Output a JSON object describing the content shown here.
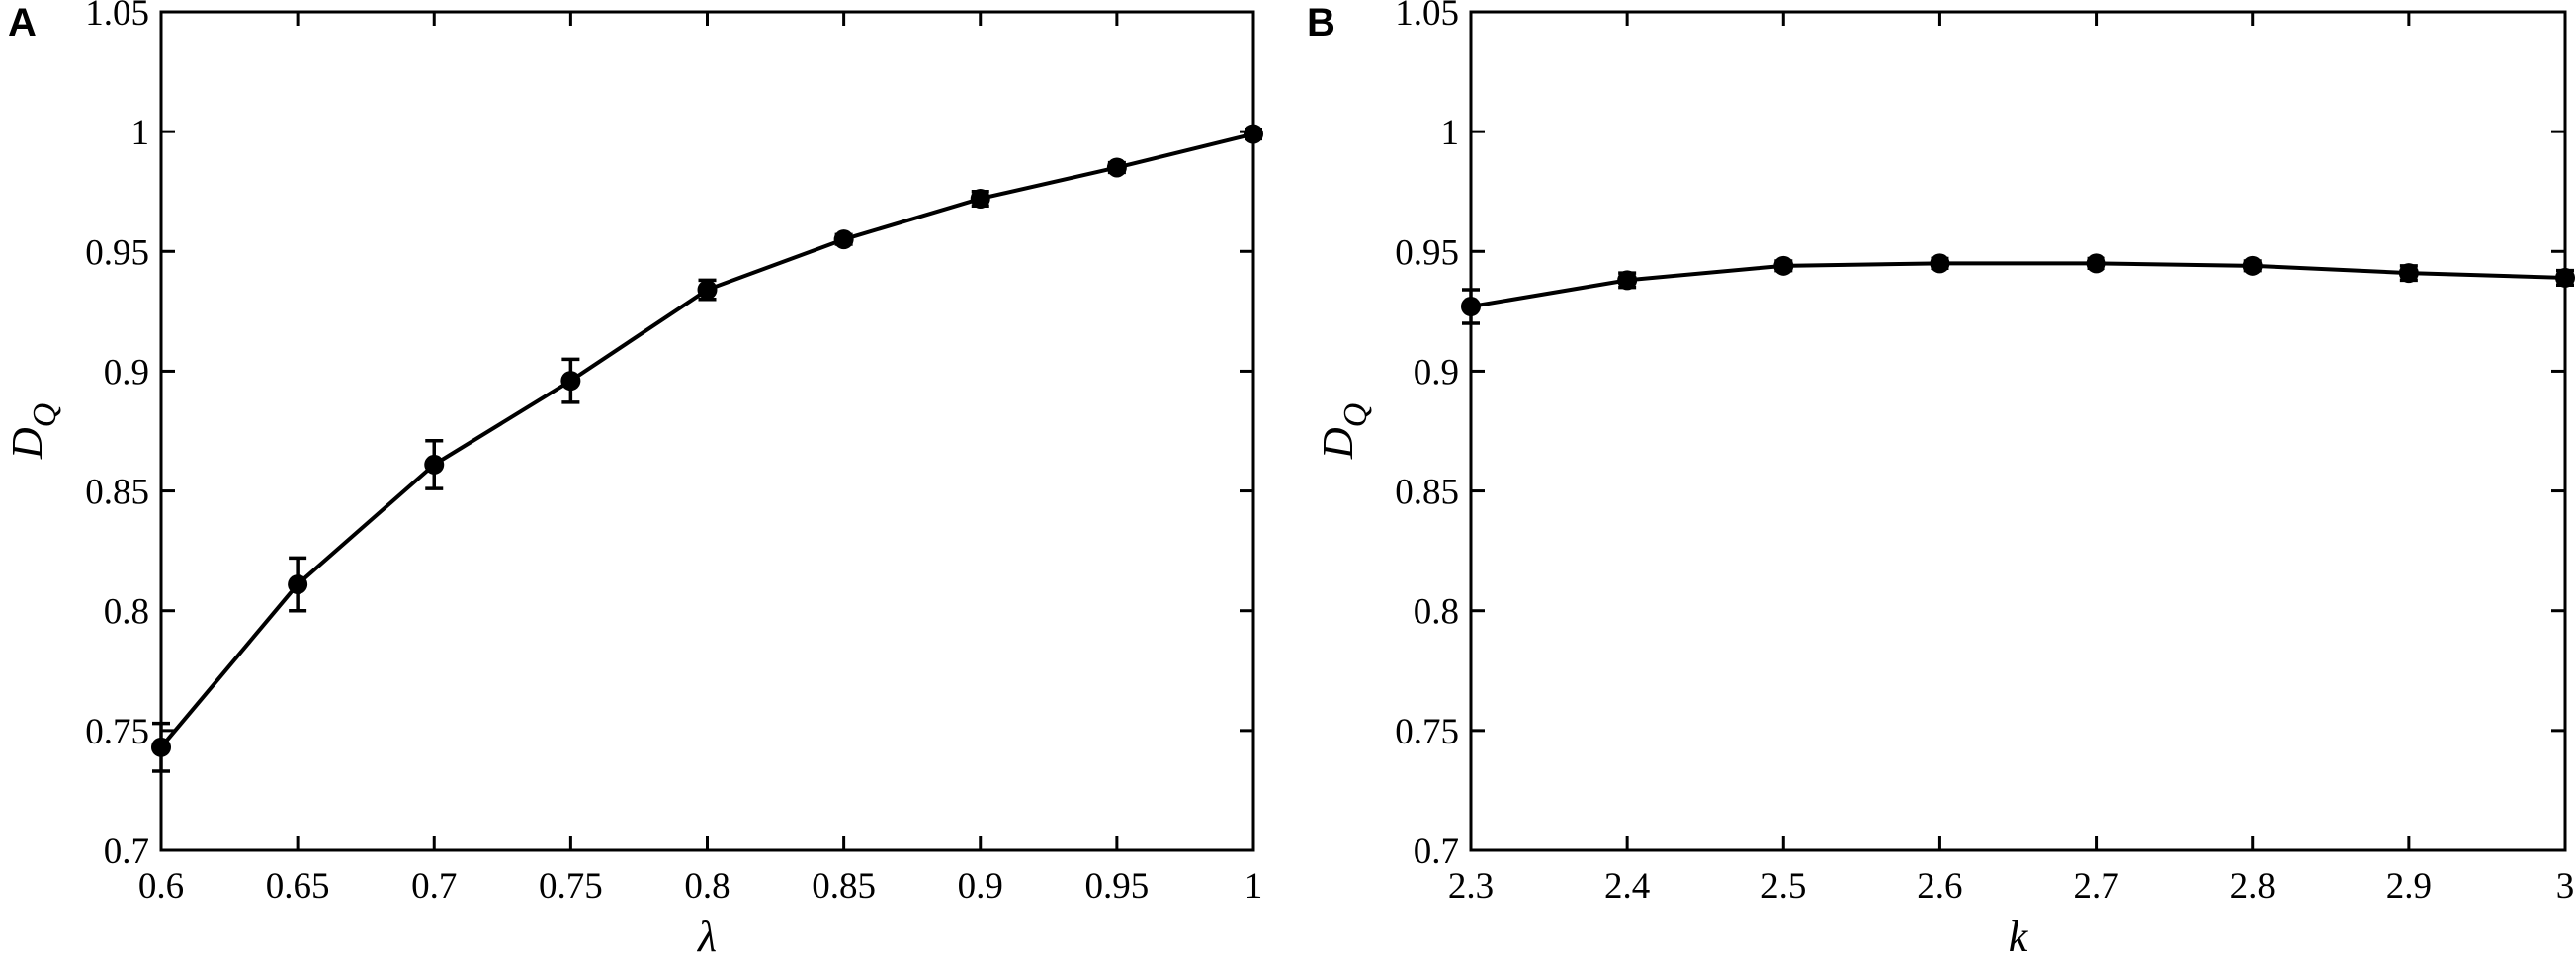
{
  "chart_data": [
    {
      "type": "line",
      "panel_label": "A",
      "xlabel": "λ",
      "ylabel_main": "D",
      "ylabel_sub": "Q",
      "xlim": [
        0.6,
        1.0
      ],
      "ylim": [
        0.7,
        1.05
      ],
      "xticks": [
        0.6,
        0.65,
        0.7,
        0.75,
        0.8,
        0.85,
        0.9,
        0.95,
        1.0
      ],
      "xtick_labels": [
        "0.6",
        "0.65",
        "0.7",
        "0.75",
        "0.8",
        "0.85",
        "0.9",
        "0.95",
        "1"
      ],
      "yticks": [
        0.7,
        0.75,
        0.8,
        0.85,
        0.9,
        0.95,
        1.0,
        1.05
      ],
      "ytick_labels": [
        "0.7",
        "0.75",
        "0.8",
        "0.85",
        "0.9",
        "0.95",
        "1",
        "1.05"
      ],
      "grid": false,
      "series": [
        {
          "x": [
            0.6,
            0.65,
            0.7,
            0.75,
            0.8,
            0.85,
            0.9,
            0.95,
            1.0
          ],
          "y": [
            0.743,
            0.811,
            0.861,
            0.896,
            0.934,
            0.955,
            0.972,
            0.985,
            0.999
          ],
          "err": [
            0.01,
            0.011,
            0.01,
            0.009,
            0.004,
            0.002,
            0.003,
            0.002,
            0.002
          ]
        }
      ]
    },
    {
      "type": "line",
      "panel_label": "B",
      "xlabel": "k",
      "ylabel_main": "D",
      "ylabel_sub": "Q",
      "xlim": [
        2.3,
        3.0
      ],
      "ylim": [
        0.7,
        1.05
      ],
      "xticks": [
        2.3,
        2.4,
        2.5,
        2.6,
        2.7,
        2.8,
        2.9,
        3.0
      ],
      "xtick_labels": [
        "2.3",
        "2.4",
        "2.5",
        "2.6",
        "2.7",
        "2.8",
        "2.9",
        "3"
      ],
      "yticks": [
        0.7,
        0.75,
        0.8,
        0.85,
        0.9,
        0.95,
        1.0,
        1.05
      ],
      "ytick_labels": [
        "0.7",
        "0.75",
        "0.8",
        "0.85",
        "0.9",
        "0.95",
        "1",
        "1.05"
      ],
      "grid": false,
      "series": [
        {
          "x": [
            2.3,
            2.4,
            2.5,
            2.6,
            2.7,
            2.8,
            2.9,
            3.0
          ],
          "y": [
            0.927,
            0.938,
            0.944,
            0.945,
            0.945,
            0.944,
            0.941,
            0.939
          ],
          "err": [
            0.007,
            0.003,
            0.002,
            0.002,
            0.002,
            0.002,
            0.003,
            0.003
          ]
        }
      ]
    }
  ]
}
